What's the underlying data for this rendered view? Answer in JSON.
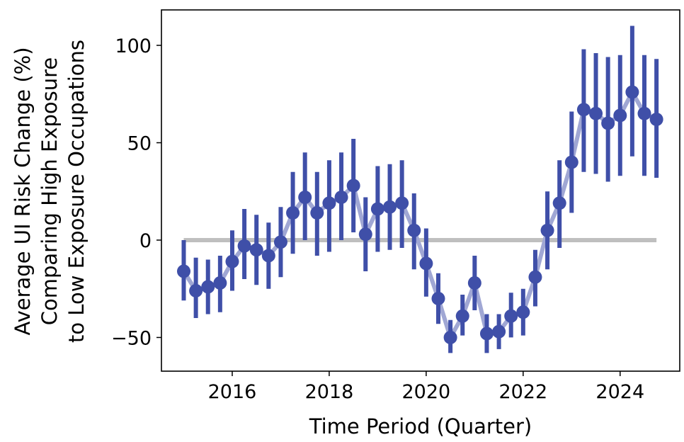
{
  "chart_data": {
    "type": "line",
    "title": "",
    "xlabel": "Time Period (Quarter)",
    "ylabel": [
      "Average UI Risk Change (%)",
      "Comparing High Exposure",
      "to Low Exposure Occupations"
    ],
    "xlim": [
      2014.54,
      2025.23
    ],
    "ylim": [
      -67.3,
      118.2
    ],
    "xticks": [
      2016,
      2018,
      2020,
      2022,
      2024
    ],
    "xtick_labels": [
      "2016",
      "2018",
      "2020",
      "2022",
      "2024"
    ],
    "yticks": [
      -50,
      0,
      50,
      100
    ],
    "ytick_labels": [
      "−50",
      "0",
      "50",
      "100"
    ],
    "grid": false,
    "reference_line": {
      "y": 0,
      "color": "#bfbfbf"
    },
    "colors": {
      "point": "#3f4fa8",
      "line": "#a0a7d4"
    },
    "x": [
      2015.0,
      2015.25,
      2015.5,
      2015.75,
      2016.0,
      2016.25,
      2016.5,
      2016.75,
      2017.0,
      2017.25,
      2017.5,
      2017.75,
      2018.0,
      2018.25,
      2018.5,
      2018.75,
      2019.0,
      2019.25,
      2019.5,
      2019.75,
      2020.0,
      2020.25,
      2020.5,
      2020.75,
      2021.0,
      2021.25,
      2021.5,
      2021.75,
      2022.0,
      2022.25,
      2022.5,
      2022.75,
      2023.0,
      2023.25,
      2023.5,
      2023.75,
      2024.0,
      2024.25,
      2024.5,
      2024.75
    ],
    "y": [
      -16,
      -26,
      -24,
      -22,
      -11,
      -3,
      -5,
      -8,
      -1,
      14,
      22,
      14,
      19,
      22,
      28,
      3,
      16,
      17,
      19,
      5,
      -12,
      -30,
      -50,
      -39,
      -22,
      -48,
      -47,
      -39,
      -37,
      -19,
      5,
      19,
      40,
      67,
      65,
      60,
      64,
      76,
      65,
      62
    ],
    "ci_low": [
      -31,
      -40,
      -38,
      -37,
      -26,
      -20,
      -23,
      -25,
      -19,
      -7,
      0,
      -8,
      -6,
      0,
      4,
      -16,
      -6,
      -5,
      -4,
      -15,
      -29,
      -43,
      -58,
      -49,
      -36,
      -58,
      -56,
      -50,
      -49,
      -34,
      -15,
      -4,
      14,
      35,
      34,
      30,
      33,
      43,
      33,
      32
    ],
    "ci_high": [
      0,
      -9,
      -10,
      -8,
      5,
      16,
      13,
      9,
      17,
      35,
      45,
      35,
      41,
      45,
      52,
      22,
      38,
      39,
      41,
      24,
      6,
      -17,
      -41,
      -28,
      -8,
      -38,
      -38,
      -27,
      -25,
      -5,
      25,
      41,
      66,
      98,
      96,
      94,
      95,
      110,
      95,
      93
    ]
  }
}
